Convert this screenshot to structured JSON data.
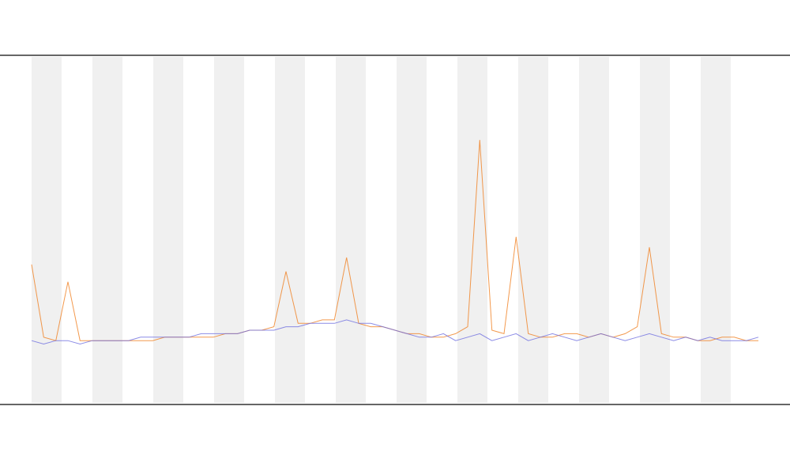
{
  "chart_data": {
    "type": "line",
    "x": [
      0,
      1,
      2,
      3,
      4,
      5,
      6,
      7,
      8,
      9,
      10,
      11,
      12,
      13,
      14,
      15,
      16,
      17,
      18,
      19,
      20,
      21,
      22,
      23,
      24,
      25,
      26,
      27,
      28,
      29,
      30,
      31,
      32,
      33,
      34,
      35,
      36,
      37,
      38,
      39,
      40,
      41,
      42,
      43,
      44,
      45,
      46,
      47,
      48,
      49,
      50,
      51,
      52,
      53,
      54,
      55,
      56,
      57,
      58,
      59,
      60
    ],
    "xlim": [
      0,
      60
    ],
    "ylim": [
      0,
      100
    ],
    "series": [
      {
        "color": "#f08020",
        "values": [
          40,
          19,
          18,
          35,
          18,
          18,
          18,
          18,
          18,
          18,
          18,
          19,
          19,
          19,
          19,
          19,
          20,
          20,
          21,
          21,
          22,
          38,
          23,
          23,
          24,
          24,
          42,
          23,
          22,
          22,
          21,
          20,
          20,
          19,
          19,
          20,
          22,
          76,
          21,
          20,
          48,
          20,
          19,
          19,
          20,
          20,
          19,
          20,
          19,
          20,
          22,
          45,
          20,
          19,
          19,
          18,
          18,
          19,
          19,
          18,
          18
        ]
      },
      {
        "color": "#6f6fe0",
        "values": [
          18,
          17,
          18,
          18,
          17,
          18,
          18,
          18,
          18,
          19,
          19,
          19,
          19,
          19,
          20,
          20,
          20,
          20,
          21,
          21,
          21,
          22,
          22,
          23,
          23,
          23,
          24,
          23,
          23,
          22,
          21,
          20,
          19,
          19,
          20,
          18,
          19,
          20,
          18,
          19,
          20,
          18,
          19,
          20,
          19,
          18,
          19,
          20,
          19,
          18,
          19,
          20,
          19,
          18,
          19,
          18,
          19,
          18,
          18,
          18,
          19
        ]
      }
    ],
    "grid": false
  }
}
